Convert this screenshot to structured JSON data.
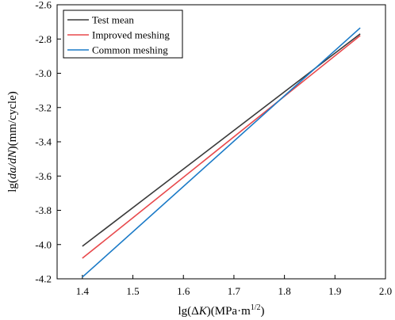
{
  "chart_data": {
    "type": "line",
    "xlabel": {
      "prefix": "lg(Δ",
      "italic": "K",
      "unit": ")(MPa·m",
      "sup": "1/2",
      "suffix": ")"
    },
    "ylabel": {
      "prefix": "lg(",
      "italic": "da/dN",
      "suffix": ")(mm/cycle)"
    },
    "xlim": [
      1.35,
      2.0
    ],
    "ylim": [
      -4.2,
      -2.6
    ],
    "xticks": [
      "1.4",
      "1.5",
      "1.6",
      "1.7",
      "1.8",
      "1.9",
      "2.0"
    ],
    "yticks": [
      "-2.6",
      "-2.8",
      "-3.0",
      "-3.2",
      "-3.4",
      "-3.6",
      "-3.8",
      "-4.0",
      "-4.2"
    ],
    "legend_position": "top-left",
    "series": [
      {
        "name": "Test mean",
        "color": "#3a3a3a",
        "x": [
          1.4,
          1.95
        ],
        "y": [
          -4.01,
          -2.77
        ]
      },
      {
        "name": "Improved meshing",
        "color": "#e8494c",
        "x": [
          1.4,
          1.95
        ],
        "y": [
          -4.08,
          -2.78
        ]
      },
      {
        "name": "Common meshing",
        "color": "#1a7ac7",
        "x": [
          1.4,
          1.95
        ],
        "y": [
          -4.19,
          -2.735
        ]
      }
    ]
  }
}
